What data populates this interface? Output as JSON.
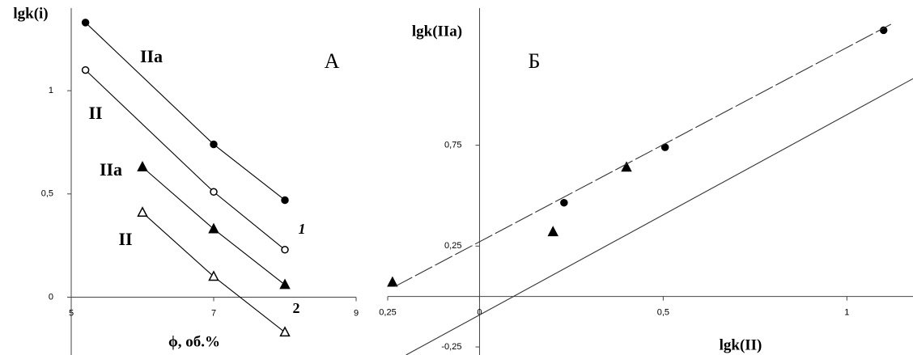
{
  "chart_data": [
    {
      "type": "line",
      "title": "A",
      "xlabel": "ϕ, об.%",
      "ylabel": "lgk(i)",
      "xlim": [
        5,
        9
      ],
      "ylim": [
        -0.28,
        1.4
      ],
      "xticks": [
        5,
        7,
        9
      ],
      "yticks": [
        0,
        {
          "value": 0.5,
          "label": "0,5"
        },
        1
      ],
      "series": [
        {
          "name": "IIa",
          "marker": "filled-circle",
          "color": "#000000",
          "x": [
            5.2,
            7,
            8
          ],
          "y": [
            1.33,
            0.74,
            0.47
          ]
        },
        {
          "name": "II",
          "marker": "open-circle",
          "color": "#000000",
          "x": [
            5.2,
            7,
            8
          ],
          "y": [
            1.1,
            0.51,
            0.23
          ]
        },
        {
          "name": "IIa",
          "marker": "filled-triangle",
          "color": "#000000",
          "x": [
            6,
            7,
            8
          ],
          "y": [
            0.63,
            0.33,
            0.06
          ]
        },
        {
          "name": "II",
          "marker": "open-triangle",
          "color": "#000000",
          "x": [
            6,
            7,
            8
          ],
          "y": [
            0.41,
            0.1,
            -0.17
          ]
        }
      ],
      "annotations": [
        "1",
        "2"
      ]
    },
    {
      "type": "scatter",
      "title": "Б",
      "xlabel": "lgk(II)",
      "ylabel": "lgk(IIa)",
      "xlim": [
        -0.25,
        1.18
      ],
      "ylim": [
        -0.29,
        1.43
      ],
      "xticks": [
        {
          "value": -0.25,
          "label": "0,25"
        },
        0,
        {
          "value": 0.5,
          "label": "0,5"
        },
        1
      ],
      "yticks": [
        {
          "value": -0.25,
          "label": "-0,25"
        },
        {
          "value": 0.25,
          "label": "0,25"
        },
        {
          "value": 0.75,
          "label": "0,75"
        }
      ],
      "series": [
        {
          "marker": "filled-circle",
          "color": "#000000",
          "x": [
            0.23,
            0.505,
            1.1
          ],
          "y": [
            0.465,
            0.74,
            1.32
          ]
        },
        {
          "marker": "filled-triangle",
          "color": "#000000",
          "x": [
            -0.237,
            0.2,
            0.4
          ],
          "y": [
            0.07,
            0.32,
            0.64
          ]
        },
        {
          "line": "dashed",
          "color": "#333333",
          "x": [
            -0.23,
            1.12
          ],
          "y": [
            0.05,
            1.35
          ]
        },
        {
          "line": "solid",
          "color": "#333333",
          "x": [
            -0.2,
            1.18
          ],
          "y": [
            -0.29,
            1.08
          ]
        }
      ]
    }
  ]
}
